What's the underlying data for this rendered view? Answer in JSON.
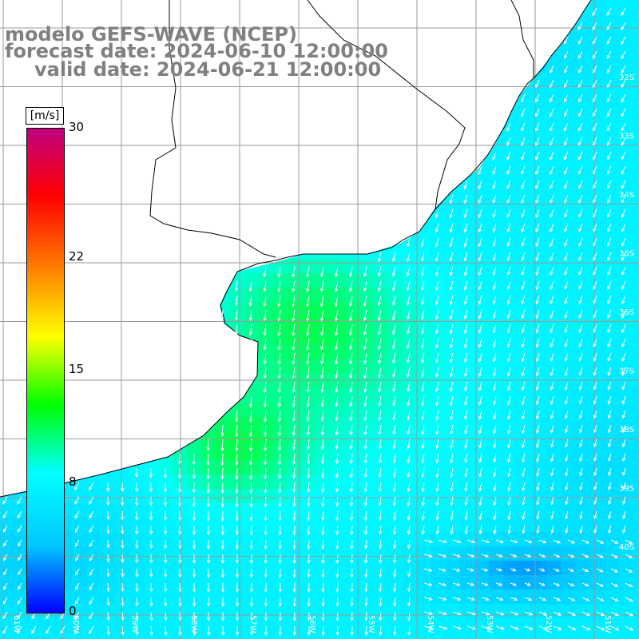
{
  "title": {
    "line1": "modelo GEFS-WAVE (NCEP)",
    "line2": "forecast date: 2024-06-10 12:00:00",
    "line3": "valid date: 2024-06-21 12:00:00"
  },
  "legend": {
    "unit": "[m/s]",
    "ticks": [
      "30",
      "22",
      "15",
      "8",
      "0"
    ],
    "tick_values": [
      30,
      22,
      15,
      8,
      0
    ],
    "min": 0,
    "max": 30,
    "colors": [
      "#0000ff",
      "#00c8ff",
      "#00ffff",
      "#00ff00",
      "#ffff00",
      "#ff8000",
      "#ff0000",
      "#c0007f"
    ]
  },
  "map": {
    "land_color": "#ffffff",
    "grid_color": "#9a9a9a",
    "coast_color": "#000000",
    "arrow_color": "#ffffff",
    "lat_labels": [
      "32S",
      "33S",
      "34S",
      "35S",
      "36S",
      "37S",
      "38S",
      "39S",
      "40S"
    ],
    "lon_labels": [
      "61W",
      "60W",
      "59W",
      "58W",
      "57W",
      "56W",
      "55W",
      "54W",
      "53W",
      "52W",
      "51W"
    ]
  }
}
